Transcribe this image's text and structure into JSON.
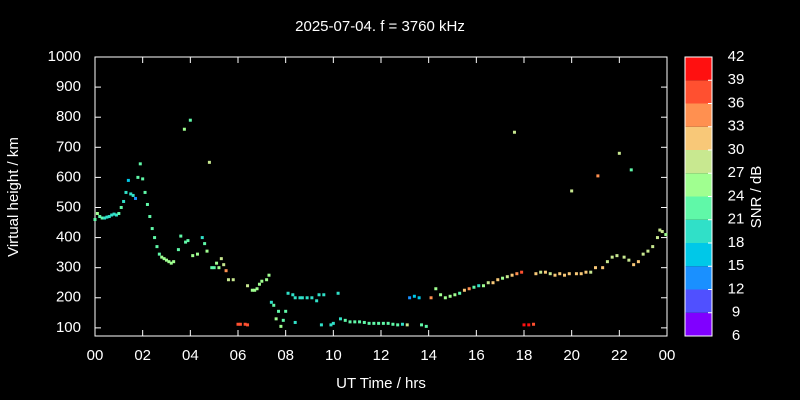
{
  "chart_data": {
    "type": "scatter",
    "title": "2025-07-04. f = 3760 kHz",
    "x_label": "UT Time / hrs",
    "y_label": "Virtual height / km",
    "colorbar_label": "SNR / dB",
    "xlim": [
      0,
      24
    ],
    "xticks": [
      {
        "value": 0,
        "label": "00"
      },
      {
        "value": 2,
        "label": "02"
      },
      {
        "value": 4,
        "label": "04"
      },
      {
        "value": 6,
        "label": "06"
      },
      {
        "value": 8,
        "label": "08"
      },
      10,
      12,
      14,
      16,
      18,
      20,
      22,
      {
        "value": 24,
        "label": "00"
      }
    ],
    "ylim": [
      73,
      1000
    ],
    "yticks": [
      100,
      200,
      300,
      400,
      500,
      600,
      700,
      800,
      900,
      1000
    ],
    "clim": [
      6,
      42
    ],
    "cticks": [
      6,
      9,
      12,
      15,
      18,
      21,
      24,
      27,
      30,
      33,
      36,
      39,
      42
    ],
    "colormap": [
      "#8000ff",
      "#5050ff",
      "#1a90ff",
      "#00c8e8",
      "#30e0c8",
      "#60f8a8",
      "#a0ff90",
      "#c8e890",
      "#f8c878",
      "#ff9050",
      "#ff5030",
      "#ff1010"
    ],
    "x": [
      0,
      0.1,
      0.2,
      0.3,
      0.4,
      0.5,
      0.6,
      0.7,
      0.8,
      0.9,
      1.0,
      1.1,
      1.2,
      1.3,
      1.4,
      1.5,
      1.6,
      1.7,
      1.8,
      1.9,
      2.0,
      2.1,
      2.2,
      2.3,
      2.4,
      2.5,
      2.6,
      2.7,
      2.8,
      2.9,
      3.0,
      3.1,
      3.2,
      3.3,
      3.5,
      3.6,
      3.75,
      3.8,
      3.9,
      4.0,
      4.1,
      4.3,
      4.5,
      4.6,
      4.7,
      4.8,
      4.9,
      5.0,
      5.1,
      5.2,
      5.3,
      5.4,
      5.5,
      5.6,
      5.8,
      6.0,
      6.1,
      6.3,
      6.4,
      6.4,
      6.6,
      6.7,
      6.8,
      6.9,
      7.0,
      7.2,
      7.3,
      7.4,
      7.5,
      7.6,
      7.7,
      7.8,
      7.9,
      8.0,
      8.1,
      8.3,
      8.4,
      8.6,
      8.7,
      8.9,
      9.1,
      9.3,
      9.4,
      9.6,
      9.5,
      8.4,
      9.9,
      10.0,
      10.2,
      10.3,
      10.5,
      10.7,
      10.9,
      11.1,
      11.3,
      11.5,
      11.7,
      11.9,
      12.1,
      12.3,
      12.5,
      12.7,
      12.9,
      13.1,
      13.2,
      13.4,
      13.6,
      13.7,
      13.9,
      14.1,
      14.3,
      14.5,
      14.7,
      14.9,
      15.1,
      15.3,
      15.5,
      15.7,
      15.9,
      16.1,
      16.3,
      16.5,
      16.7,
      16.9,
      17.1,
      17.3,
      17.5,
      17.6,
      17.7,
      17.9,
      18.0,
      18.2,
      18.4,
      18.5,
      18.7,
      18.9,
      19.1,
      19.3,
      19.5,
      19.7,
      19.9,
      20.0,
      20.2,
      20.4,
      20.6,
      20.8,
      21.0,
      21.1,
      21.3,
      21.5,
      21.7,
      21.9,
      22.0,
      22.2,
      22.4,
      22.5,
      22.6,
      22.8,
      23.0,
      23.2,
      23.4,
      23.6,
      23.7,
      23.8,
      23.95
    ],
    "y": [
      460,
      480,
      470,
      465,
      465,
      468,
      470,
      475,
      478,
      475,
      480,
      500,
      520,
      550,
      590,
      545,
      540,
      530,
      600,
      645,
      595,
      550,
      510,
      470,
      430,
      400,
      370,
      345,
      335,
      330,
      325,
      320,
      315,
      320,
      360,
      405,
      760,
      385,
      390,
      790,
      340,
      345,
      400,
      380,
      355,
      650,
      300,
      300,
      315,
      300,
      330,
      310,
      290,
      260,
      260,
      112,
      112,
      112,
      110,
      240,
      225,
      225,
      230,
      245,
      255,
      260,
      275,
      185,
      175,
      130,
      155,
      105,
      125,
      155,
      215,
      210,
      200,
      200,
      200,
      200,
      200,
      190,
      210,
      210,
      110,
      118,
      110,
      115,
      215,
      130,
      125,
      120,
      120,
      120,
      118,
      115,
      115,
      115,
      115,
      115,
      112,
      110,
      112,
      110,
      200,
      205,
      200,
      110,
      105,
      200,
      230,
      210,
      200,
      205,
      210,
      215,
      225,
      230,
      235,
      240,
      240,
      250,
      250,
      260,
      265,
      270,
      275,
      750,
      280,
      285,
      110,
      110,
      112,
      280,
      285,
      285,
      280,
      275,
      280,
      275,
      280,
      555,
      280,
      280,
      285,
      285,
      300,
      605,
      300,
      320,
      335,
      340,
      680,
      335,
      325,
      625,
      310,
      320,
      345,
      355,
      370,
      400,
      425,
      420,
      410
    ],
    "snr": [
      21,
      24,
      21,
      21,
      20,
      20,
      20,
      20,
      19,
      19,
      21,
      21,
      20,
      19,
      17,
      19,
      20,
      12,
      21,
      22,
      22,
      22,
      22,
      21,
      21,
      21,
      21,
      23,
      25,
      25,
      25,
      25,
      26,
      24,
      21,
      21,
      24,
      21,
      21,
      21,
      24,
      24,
      20,
      21,
      24,
      27,
      22,
      22,
      25,
      25,
      28,
      28,
      34,
      27,
      27,
      38,
      38,
      38,
      36,
      27,
      25,
      25,
      26,
      25,
      24,
      24,
      24,
      20,
      22,
      24,
      22,
      24,
      22,
      22,
      20,
      20,
      20,
      20,
      20,
      19,
      19,
      19,
      20,
      20,
      20,
      20,
      20,
      20,
      18,
      20,
      21,
      21,
      22,
      22,
      21,
      22,
      22,
      22,
      22,
      22,
      22,
      22,
      20,
      28,
      13,
      15,
      17,
      22,
      22,
      33,
      25,
      25,
      24,
      24,
      24,
      23,
      32,
      33,
      22,
      20,
      25,
      28,
      30,
      30,
      25,
      28,
      32,
      27,
      34,
      38,
      39,
      39,
      36,
      30,
      29,
      30,
      28,
      32,
      30,
      31,
      32,
      28,
      31,
      32,
      30,
      28,
      31,
      33,
      30,
      29,
      28,
      28,
      27,
      27,
      29,
      21,
      32,
      31,
      28,
      28,
      28,
      27,
      27,
      27,
      25
    ]
  }
}
